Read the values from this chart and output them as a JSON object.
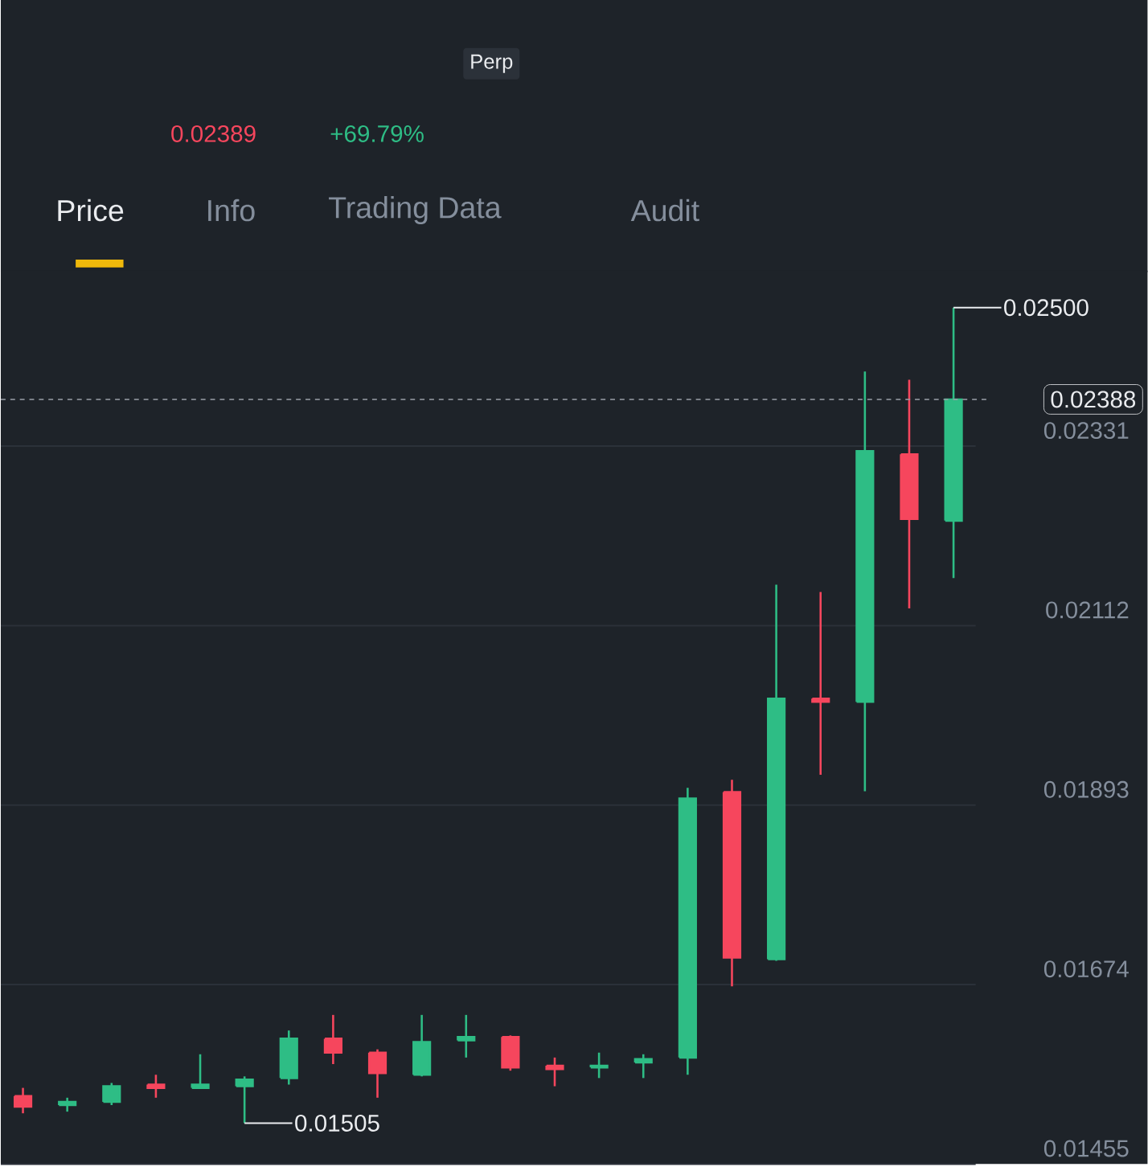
{
  "chart_data": {
    "type": "candlestick",
    "annotations": [
      "Perp",
      "0.02389",
      "+69.79%",
      "Price",
      "Info",
      "Trading Data",
      "Audit",
      "0.02500",
      "0.01505"
    ],
    "categories": [
      null,
      null,
      null,
      null,
      null,
      null,
      null,
      null,
      null,
      null,
      null,
      null,
      null,
      null,
      null,
      null,
      null,
      null,
      null,
      null,
      null,
      null
    ],
    "ohlc": [
      [
        0.01538,
        0.01548,
        0.01517,
        0.01525
      ],
      [
        0.01527,
        0.01536,
        0.01519,
        0.01531
      ],
      [
        0.01531,
        0.01554,
        0.01527,
        0.0155
      ],
      [
        0.01552,
        0.01564,
        0.01536,
        0.01548
      ],
      [
        0.01548,
        0.01589,
        0.01548,
        0.01552
      ],
      [
        0.0155,
        0.01562,
        0.01505,
        0.01558
      ],
      [
        0.0156,
        0.01618,
        0.01552,
        0.01608
      ],
      [
        0.01608,
        0.01637,
        0.01577,
        0.01591
      ],
      [
        0.01591,
        0.01595,
        0.01536,
        0.01566
      ],
      [
        0.01564,
        0.01637,
        0.01562,
        0.01604
      ],
      [
        0.01606,
        0.01637,
        0.01585,
        0.0161
      ],
      [
        0.0161,
        0.01612,
        0.01569,
        0.01573
      ],
      [
        0.01575,
        0.01585,
        0.0155,
        0.01571
      ],
      [
        0.01573,
        0.01591,
        0.0156,
        0.01575
      ],
      [
        0.01579,
        0.01589,
        0.0156,
        0.01583
      ],
      [
        0.01585,
        0.01914,
        0.01564,
        0.01901
      ],
      [
        0.01909,
        0.01924,
        0.01672,
        0.01707
      ],
      [
        0.01705,
        0.02162,
        0.01703,
        0.02023
      ],
      [
        0.02023,
        0.02153,
        0.0193,
        0.02019
      ],
      [
        0.02019,
        0.02422,
        0.0191,
        0.02325
      ],
      [
        0.02321,
        0.02412,
        0.02133,
        0.02242
      ],
      [
        0.0224,
        0.025,
        0.0217,
        0.02388
      ]
    ],
    "colors": [
      "#f6465d",
      "#2ebd85",
      "#2ebd85",
      "#f6465d",
      "#2ebd85",
      "#2ebd85",
      "#2ebd85",
      "#f6465d",
      "#f6465d",
      "#2ebd85",
      "#2ebd85",
      "#f6465d",
      "#f6465d",
      "#2ebd85",
      "#2ebd85",
      "#2ebd85",
      "#f6465d",
      "#2ebd85",
      "#f6465d",
      "#2ebd85",
      "#f6465d",
      "#2ebd85"
    ],
    "ylim": [
      0.01455,
      0.02545
    ],
    "yticks": [
      0.01455,
      0.01674,
      0.01893,
      0.02112,
      0.02331
    ],
    "grid": "y",
    "tick_labels": "y",
    "ref_lines": [
      {
        "axis": "y",
        "value": 0.02388,
        "label": "0.02388",
        "color": "#9aa0a8",
        "line_style": "dashed"
      }
    ]
  }
}
